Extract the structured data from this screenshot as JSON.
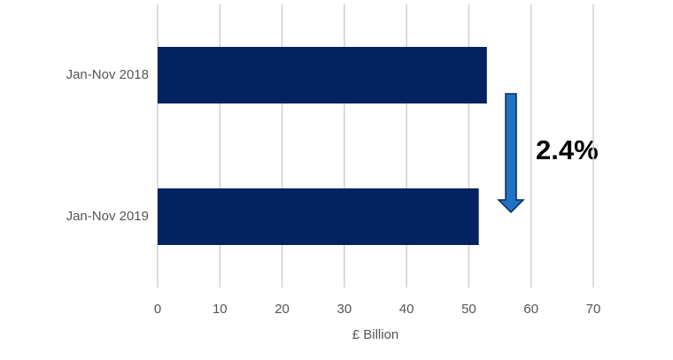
{
  "chart_data": {
    "type": "bar",
    "orientation": "horizontal",
    "categories": [
      "Jan-Nov 2018",
      "Jan-Nov 2019"
    ],
    "values": [
      52.9,
      51.6
    ],
    "color": "#042260",
    "xlabel": "£ Billion",
    "xlim": [
      0,
      70
    ],
    "xticks": [
      0,
      10,
      20,
      30,
      40,
      50,
      60,
      70
    ],
    "grid": true,
    "annotation": "2.4%"
  }
}
